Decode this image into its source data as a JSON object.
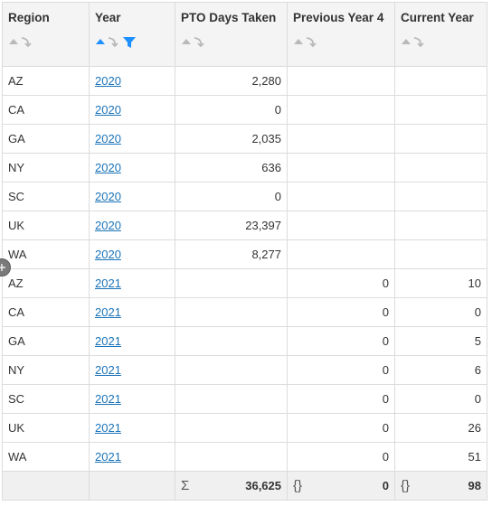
{
  "columns": [
    {
      "key": "region",
      "label": "Region",
      "align": "left"
    },
    {
      "key": "year",
      "label": "Year",
      "align": "left",
      "sorted": "ascending",
      "filtered": true
    },
    {
      "key": "pto",
      "label": "PTO Days Taken",
      "align": "right"
    },
    {
      "key": "prev",
      "label": "Previous Year 4",
      "align": "right"
    },
    {
      "key": "curr",
      "label": "Current Year",
      "align": "right"
    }
  ],
  "rows": [
    {
      "region": "AZ",
      "year": "2020",
      "pto": "2,280",
      "prev": "",
      "curr": ""
    },
    {
      "region": "CA",
      "year": "2020",
      "pto": "0",
      "prev": "",
      "curr": ""
    },
    {
      "region": "GA",
      "year": "2020",
      "pto": "2,035",
      "prev": "",
      "curr": ""
    },
    {
      "region": "NY",
      "year": "2020",
      "pto": "636",
      "prev": "",
      "curr": ""
    },
    {
      "region": "SC",
      "year": "2020",
      "pto": "0",
      "prev": "",
      "curr": ""
    },
    {
      "region": "UK",
      "year": "2020",
      "pto": "23,397",
      "prev": "",
      "curr": ""
    },
    {
      "region": "WA",
      "year": "2020",
      "pto": "8,277",
      "prev": "",
      "curr": ""
    },
    {
      "region": "AZ",
      "year": "2021",
      "pto": "",
      "prev": "0",
      "curr": "10"
    },
    {
      "region": "CA",
      "year": "2021",
      "pto": "",
      "prev": "0",
      "curr": "0"
    },
    {
      "region": "GA",
      "year": "2021",
      "pto": "",
      "prev": "0",
      "curr": "5"
    },
    {
      "region": "NY",
      "year": "2021",
      "pto": "",
      "prev": "0",
      "curr": "6"
    },
    {
      "region": "SC",
      "year": "2021",
      "pto": "",
      "prev": "0",
      "curr": "0"
    },
    {
      "region": "UK",
      "year": "2021",
      "pto": "",
      "prev": "0",
      "curr": "26"
    },
    {
      "region": "WA",
      "year": "2021",
      "pto": "",
      "prev": "0",
      "curr": "51"
    }
  ],
  "totals": {
    "pto": {
      "symbol": "Σ",
      "value": "36,625"
    },
    "prev": {
      "symbol": "{}",
      "value": "0"
    },
    "curr": {
      "symbol": "{}",
      "value": "98"
    }
  },
  "icons": {
    "sort_inactive": "sort-arrows-icon",
    "sort_ascending": "sort-ascending-icon",
    "filter": "filter-funnel-icon",
    "drag": "drag-handle-icon"
  },
  "colors": {
    "link": "#1a73b8",
    "sort_active": "#1e90ff",
    "sort_inactive": "#b8b8b8",
    "header_bg": "#f4f4f4",
    "footer_bg": "#f0f0f0",
    "grid_border": "#dcdcdc"
  }
}
